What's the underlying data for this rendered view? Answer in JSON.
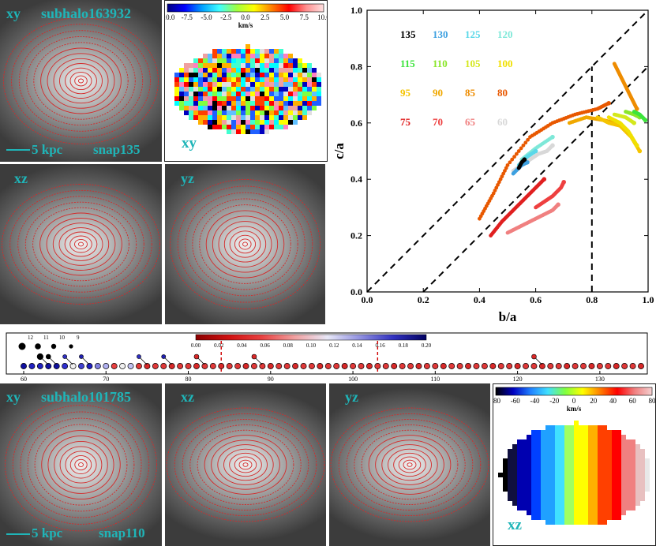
{
  "top": {
    "panel_xy": {
      "label": "xy",
      "subhalo": "subhalo163932",
      "scale": "5 kpc",
      "snap": "snap135"
    },
    "panel_xz": {
      "label": "xz"
    },
    "panel_yz": {
      "label": "yz"
    },
    "vel_map": {
      "label": "xy",
      "units": "km/s",
      "ticks": [
        "-10.0",
        "-7.5",
        "-5.0",
        "-2.5",
        "0.0",
        "2.5",
        "5.0",
        "7.5",
        "10.0"
      ]
    }
  },
  "bottom": {
    "panel_xy": {
      "label": "xy",
      "subhalo": "subhalo101785",
      "scale": "5 kpc",
      "snap": "snap110"
    },
    "panel_xz": {
      "label": "xz"
    },
    "panel_yz": {
      "label": "yz"
    },
    "vel_map": {
      "label": "xz",
      "units": "km/s",
      "ticks": [
        "-80",
        "-60",
        "-40",
        "-20",
        "0",
        "20",
        "40",
        "60",
        "80"
      ]
    }
  },
  "timeline": {
    "colorbar_ticks": [
      "0.00",
      "0.02",
      "0.04",
      "0.06",
      "0.08",
      "0.10",
      "0.12",
      "0.14",
      "0.16",
      "0.18",
      "0.20"
    ],
    "axis_ticks": [
      "60",
      "70",
      "80",
      "90",
      "100",
      "110",
      "120",
      "130"
    ],
    "legend": [
      "12",
      "11",
      "10",
      "9"
    ]
  },
  "chart_data": {
    "type": "scatter",
    "xlabel": "b/a",
    "ylabel": "c/a",
    "xlim": [
      0.0,
      1.0
    ],
    "ylim": [
      0.0,
      1.0
    ],
    "xticks": [
      "0.0",
      "0.2",
      "0.4",
      "0.6",
      "0.8",
      "1.0"
    ],
    "yticks": [
      "0.0",
      "0.2",
      "0.4",
      "0.6",
      "0.8",
      "1.0"
    ],
    "reference_lines": [
      {
        "name": "diagonal-upper",
        "points": [
          [
            0.0,
            0.0
          ],
          [
            1.0,
            1.0
          ]
        ]
      },
      {
        "name": "diagonal-lower",
        "points": [
          [
            0.2,
            0.0
          ],
          [
            1.0,
            0.8
          ]
        ]
      },
      {
        "name": "vertical-0.8",
        "points": [
          [
            0.8,
            0.0
          ],
          [
            0.8,
            0.8
          ]
        ]
      }
    ],
    "legend": [
      {
        "label": "135",
        "color": "#000000"
      },
      {
        "label": "130",
        "color": "#3da0e0"
      },
      {
        "label": "125",
        "color": "#5ad8e8"
      },
      {
        "label": "120",
        "color": "#7ee8d8"
      },
      {
        "label": "115",
        "color": "#3ce43c"
      },
      {
        "label": "110",
        "color": "#8ae62a"
      },
      {
        "label": "105",
        "color": "#d4e81c"
      },
      {
        "label": "100",
        "color": "#f0e000"
      },
      {
        "label": "95",
        "color": "#f5c400"
      },
      {
        "label": "90",
        "color": "#f0a800"
      },
      {
        "label": "85",
        "color": "#ee8c00"
      },
      {
        "label": "80",
        "color": "#e85800"
      },
      {
        "label": "75",
        "color": "#e02020"
      },
      {
        "label": "70",
        "color": "#ee4040"
      },
      {
        "label": "65",
        "color": "#f08080"
      },
      {
        "label": "60",
        "color": "#d8d8d8"
      }
    ],
    "series": [
      {
        "name": "60",
        "color": "#d8d8d8",
        "points": [
          [
            0.52,
            0.43
          ],
          [
            0.55,
            0.45
          ],
          [
            0.58,
            0.47
          ],
          [
            0.61,
            0.49
          ],
          [
            0.64,
            0.5
          ],
          [
            0.66,
            0.52
          ]
        ]
      },
      {
        "name": "65",
        "color": "#f08080",
        "points": [
          [
            0.5,
            0.21
          ],
          [
            0.54,
            0.23
          ],
          [
            0.58,
            0.25
          ],
          [
            0.62,
            0.27
          ],
          [
            0.66,
            0.29
          ],
          [
            0.68,
            0.31
          ]
        ]
      },
      {
        "name": "70",
        "color": "#ee4040",
        "points": [
          [
            0.6,
            0.3
          ],
          [
            0.63,
            0.32
          ],
          [
            0.66,
            0.34
          ],
          [
            0.69,
            0.37
          ],
          [
            0.7,
            0.39
          ]
        ]
      },
      {
        "name": "75",
        "color": "#e02020",
        "points": [
          [
            0.44,
            0.2
          ],
          [
            0.48,
            0.25
          ],
          [
            0.52,
            0.29
          ],
          [
            0.56,
            0.33
          ],
          [
            0.6,
            0.37
          ],
          [
            0.63,
            0.4
          ]
        ]
      },
      {
        "name": "80",
        "color": "#e85800",
        "points": [
          [
            0.4,
            0.26
          ],
          [
            0.45,
            0.35
          ],
          [
            0.5,
            0.45
          ],
          [
            0.58,
            0.55
          ],
          [
            0.66,
            0.6
          ],
          [
            0.74,
            0.63
          ],
          [
            0.82,
            0.65
          ],
          [
            0.86,
            0.67
          ]
        ]
      },
      {
        "name": "85",
        "color": "#ee8c00",
        "points": [
          [
            0.88,
            0.81
          ],
          [
            0.9,
            0.77
          ],
          [
            0.92,
            0.73
          ],
          [
            0.94,
            0.69
          ],
          [
            0.96,
            0.65
          ]
        ]
      },
      {
        "name": "90",
        "color": "#f0a800",
        "points": [
          [
            0.72,
            0.6
          ],
          [
            0.78,
            0.62
          ],
          [
            0.84,
            0.61
          ],
          [
            0.88,
            0.6
          ]
        ]
      },
      {
        "name": "95",
        "color": "#f5c400",
        "points": [
          [
            0.82,
            0.62
          ],
          [
            0.86,
            0.6
          ],
          [
            0.9,
            0.59
          ],
          [
            0.94,
            0.55
          ],
          [
            0.97,
            0.5
          ]
        ]
      },
      {
        "name": "100",
        "color": "#f0e000",
        "points": [
          [
            0.86,
            0.62
          ],
          [
            0.9,
            0.6
          ],
          [
            0.93,
            0.57
          ],
          [
            0.96,
            0.52
          ]
        ]
      },
      {
        "name": "105",
        "color": "#d4e81c",
        "points": [
          [
            0.88,
            0.63
          ],
          [
            0.92,
            0.62
          ],
          [
            0.95,
            0.6
          ]
        ]
      },
      {
        "name": "110",
        "color": "#8ae62a",
        "points": [
          [
            0.92,
            0.64
          ],
          [
            0.95,
            0.63
          ],
          [
            0.97,
            0.62
          ]
        ]
      },
      {
        "name": "115",
        "color": "#3ce43c",
        "points": [
          [
            0.95,
            0.64
          ],
          [
            0.97,
            0.63
          ],
          [
            0.99,
            0.61
          ]
        ]
      },
      {
        "name": "120",
        "color": "#7ee8d8",
        "points": [
          [
            0.55,
            0.47
          ],
          [
            0.6,
            0.51
          ],
          [
            0.66,
            0.55
          ]
        ]
      },
      {
        "name": "125",
        "color": "#5ad8e8",
        "points": [
          [
            0.54,
            0.45
          ],
          [
            0.57,
            0.48
          ],
          [
            0.6,
            0.5
          ]
        ]
      },
      {
        "name": "130",
        "color": "#3da0e0",
        "points": [
          [
            0.52,
            0.42
          ],
          [
            0.55,
            0.45
          ],
          [
            0.57,
            0.46
          ]
        ]
      },
      {
        "name": "135",
        "color": "#000000",
        "points": [
          [
            0.54,
            0.44
          ],
          [
            0.55,
            0.46
          ],
          [
            0.56,
            0.47
          ]
        ]
      }
    ]
  }
}
